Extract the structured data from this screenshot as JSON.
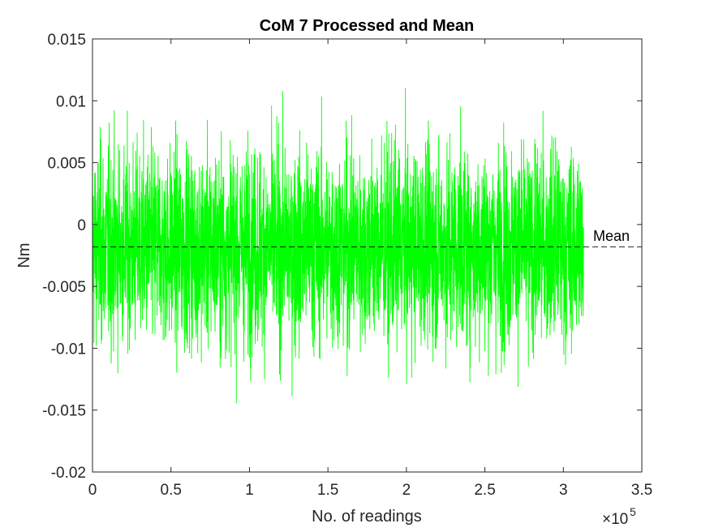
{
  "chart_data": {
    "type": "line",
    "title": "CoM 7 Processed and Mean",
    "xlabel": "No. of readings",
    "ylabel": "Nm",
    "x_exponent_label": "×10",
    "x_exponent": "5",
    "xlim": [
      0,
      350000
    ],
    "ylim": [
      -0.02,
      0.015
    ],
    "x_ticks": [
      0,
      50000,
      100000,
      150000,
      200000,
      250000,
      300000,
      350000
    ],
    "x_tick_labels": [
      "0",
      "0.5",
      "1",
      "1.5",
      "2",
      "2.5",
      "3",
      "3.5"
    ],
    "y_ticks": [
      -0.02,
      -0.015,
      -0.01,
      -0.005,
      0,
      0.005,
      0.01,
      0.015
    ],
    "y_tick_labels": [
      "-0.02",
      "-0.015",
      "-0.01",
      "-0.005",
      "0",
      "0.005",
      "0.01",
      "0.015"
    ],
    "grid": false,
    "series": [
      {
        "color": "#00ff00",
        "x_range": [
          0,
          313000
        ],
        "min": -0.0162,
        "max": 0.0119,
        "mean": -0.0018,
        "approx_std": 0.0038
      }
    ],
    "mean_line": {
      "value": -0.0018,
      "label": "Mean",
      "color": "#000000",
      "style": "dashed"
    }
  }
}
